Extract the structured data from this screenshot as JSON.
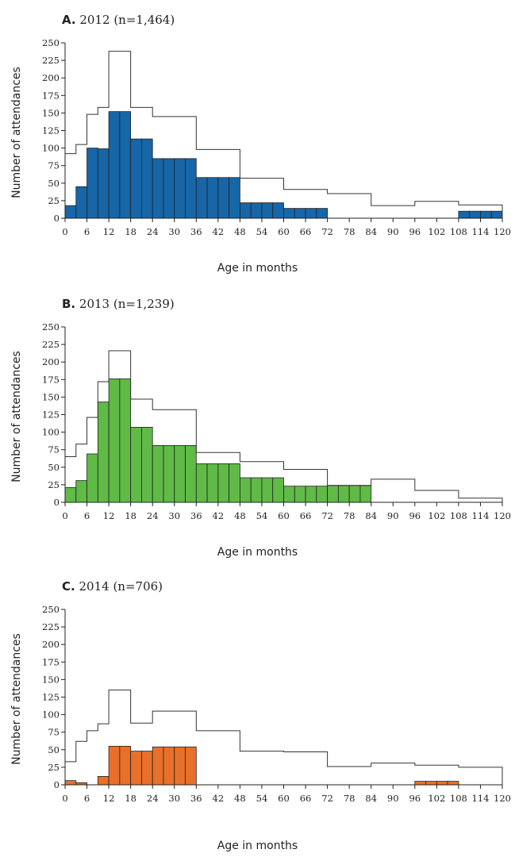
{
  "x_axis_label": "Age in months",
  "y_axis_label": "Number of attendances",
  "chart_data": [
    {
      "type": "bar",
      "title_letter": "A.",
      "title_text": "2012 (n=1,464)",
      "xlabel": "Age in months",
      "ylabel": "Number of attendances",
      "xlim": [
        0,
        120
      ],
      "ylim": [
        0,
        250
      ],
      "x_ticks": [
        0,
        6,
        12,
        18,
        24,
        30,
        36,
        42,
        48,
        54,
        60,
        66,
        72,
        78,
        84,
        90,
        96,
        102,
        108,
        114,
        120
      ],
      "y_ticks": [
        0,
        25,
        50,
        75,
        100,
        125,
        150,
        175,
        200,
        225,
        250
      ],
      "bar_color": "#1666a8",
      "bars": [
        {
          "x0": 0,
          "x1": 3,
          "value": 18
        },
        {
          "x0": 3,
          "x1": 6,
          "value": 45
        },
        {
          "x0": 6,
          "x1": 9,
          "value": 100
        },
        {
          "x0": 9,
          "x1": 12,
          "value": 99
        },
        {
          "x0": 12,
          "x1": 15,
          "value": 152
        },
        {
          "x0": 15,
          "x1": 18,
          "value": 152
        },
        {
          "x0": 18,
          "x1": 21,
          "value": 113
        },
        {
          "x0": 21,
          "x1": 24,
          "value": 113
        },
        {
          "x0": 24,
          "x1": 27,
          "value": 85
        },
        {
          "x0": 27,
          "x1": 30,
          "value": 85
        },
        {
          "x0": 30,
          "x1": 33,
          "value": 85
        },
        {
          "x0": 33,
          "x1": 36,
          "value": 85
        },
        {
          "x0": 36,
          "x1": 39,
          "value": 58
        },
        {
          "x0": 39,
          "x1": 42,
          "value": 58
        },
        {
          "x0": 42,
          "x1": 45,
          "value": 58
        },
        {
          "x0": 45,
          "x1": 48,
          "value": 58
        },
        {
          "x0": 48,
          "x1": 51,
          "value": 22
        },
        {
          "x0": 51,
          "x1": 54,
          "value": 22
        },
        {
          "x0": 54,
          "x1": 57,
          "value": 22
        },
        {
          "x0": 57,
          "x1": 60,
          "value": 22
        },
        {
          "x0": 60,
          "x1": 63,
          "value": 14
        },
        {
          "x0": 63,
          "x1": 66,
          "value": 14
        },
        {
          "x0": 66,
          "x1": 69,
          "value": 14
        },
        {
          "x0": 69,
          "x1": 72,
          "value": 14
        },
        {
          "x0": 108,
          "x1": 111,
          "value": 10
        },
        {
          "x0": 111,
          "x1": 114,
          "value": 10
        },
        {
          "x0": 114,
          "x1": 117,
          "value": 10
        },
        {
          "x0": 117,
          "x1": 120,
          "value": 10
        }
      ],
      "outline": [
        {
          "x0": 0,
          "x1": 3,
          "value": 92
        },
        {
          "x0": 3,
          "x1": 6,
          "value": 105
        },
        {
          "x0": 6,
          "x1": 9,
          "value": 148
        },
        {
          "x0": 9,
          "x1": 12,
          "value": 158
        },
        {
          "x0": 12,
          "x1": 18,
          "value": 238
        },
        {
          "x0": 18,
          "x1": 24,
          "value": 158
        },
        {
          "x0": 24,
          "x1": 36,
          "value": 145
        },
        {
          "x0": 36,
          "x1": 48,
          "value": 98
        },
        {
          "x0": 48,
          "x1": 60,
          "value": 57
        },
        {
          "x0": 60,
          "x1": 72,
          "value": 41
        },
        {
          "x0": 72,
          "x1": 84,
          "value": 35
        },
        {
          "x0": 84,
          "x1": 96,
          "value": 18
        },
        {
          "x0": 96,
          "x1": 108,
          "value": 24
        },
        {
          "x0": 108,
          "x1": 120,
          "value": 19
        }
      ]
    },
    {
      "type": "bar",
      "title_letter": "B.",
      "title_text": "2013 (n=1,239)",
      "xlabel": "Age in months",
      "ylabel": "Number of attendances",
      "xlim": [
        0,
        120
      ],
      "ylim": [
        0,
        250
      ],
      "x_ticks": [
        0,
        6,
        12,
        18,
        24,
        30,
        36,
        42,
        48,
        54,
        60,
        66,
        72,
        78,
        84,
        90,
        96,
        102,
        108,
        114,
        120
      ],
      "y_ticks": [
        0,
        25,
        50,
        75,
        100,
        125,
        150,
        175,
        200,
        225,
        250
      ],
      "bar_color": "#5fba46",
      "bars": [
        {
          "x0": 0,
          "x1": 3,
          "value": 21
        },
        {
          "x0": 3,
          "x1": 6,
          "value": 31
        },
        {
          "x0": 6,
          "x1": 9,
          "value": 69
        },
        {
          "x0": 9,
          "x1": 12,
          "value": 143
        },
        {
          "x0": 12,
          "x1": 15,
          "value": 176
        },
        {
          "x0": 15,
          "x1": 18,
          "value": 176
        },
        {
          "x0": 18,
          "x1": 21,
          "value": 107
        },
        {
          "x0": 21,
          "x1": 24,
          "value": 107
        },
        {
          "x0": 24,
          "x1": 27,
          "value": 81
        },
        {
          "x0": 27,
          "x1": 30,
          "value": 81
        },
        {
          "x0": 30,
          "x1": 33,
          "value": 81
        },
        {
          "x0": 33,
          "x1": 36,
          "value": 81
        },
        {
          "x0": 36,
          "x1": 39,
          "value": 55
        },
        {
          "x0": 39,
          "x1": 42,
          "value": 55
        },
        {
          "x0": 42,
          "x1": 45,
          "value": 55
        },
        {
          "x0": 45,
          "x1": 48,
          "value": 55
        },
        {
          "x0": 48,
          "x1": 51,
          "value": 35
        },
        {
          "x0": 51,
          "x1": 54,
          "value": 35
        },
        {
          "x0": 54,
          "x1": 57,
          "value": 35
        },
        {
          "x0": 57,
          "x1": 60,
          "value": 35
        },
        {
          "x0": 60,
          "x1": 63,
          "value": 23
        },
        {
          "x0": 63,
          "x1": 66,
          "value": 23
        },
        {
          "x0": 66,
          "x1": 69,
          "value": 23
        },
        {
          "x0": 69,
          "x1": 72,
          "value": 23
        },
        {
          "x0": 72,
          "x1": 75,
          "value": 24
        },
        {
          "x0": 75,
          "x1": 78,
          "value": 24
        },
        {
          "x0": 78,
          "x1": 81,
          "value": 24
        },
        {
          "x0": 81,
          "x1": 84,
          "value": 24
        }
      ],
      "outline": [
        {
          "x0": 0,
          "x1": 3,
          "value": 65
        },
        {
          "x0": 3,
          "x1": 6,
          "value": 83
        },
        {
          "x0": 6,
          "x1": 9,
          "value": 121
        },
        {
          "x0": 9,
          "x1": 12,
          "value": 172
        },
        {
          "x0": 12,
          "x1": 18,
          "value": 216
        },
        {
          "x0": 18,
          "x1": 24,
          "value": 147
        },
        {
          "x0": 24,
          "x1": 36,
          "value": 132
        },
        {
          "x0": 36,
          "x1": 48,
          "value": 71
        },
        {
          "x0": 48,
          "x1": 60,
          "value": 58
        },
        {
          "x0": 60,
          "x1": 72,
          "value": 47
        },
        {
          "x0": 72,
          "x1": 84,
          "value": 24
        },
        {
          "x0": 84,
          "x1": 96,
          "value": 33
        },
        {
          "x0": 96,
          "x1": 108,
          "value": 17
        },
        {
          "x0": 108,
          "x1": 120,
          "value": 6
        }
      ]
    },
    {
      "type": "bar",
      "title_letter": "C.",
      "title_text": "2014 (n=706)",
      "xlabel": "Age in months",
      "ylabel": "Number of attendances",
      "xlim": [
        0,
        120
      ],
      "ylim": [
        0,
        250
      ],
      "x_ticks": [
        0,
        6,
        12,
        18,
        24,
        30,
        36,
        42,
        48,
        54,
        60,
        66,
        72,
        78,
        84,
        90,
        96,
        102,
        108,
        114,
        120
      ],
      "y_ticks": [
        0,
        25,
        50,
        75,
        100,
        125,
        150,
        175,
        200,
        225,
        250
      ],
      "bar_color": "#e8702a",
      "bars": [
        {
          "x0": 0,
          "x1": 3,
          "value": 6
        },
        {
          "x0": 3,
          "x1": 6,
          "value": 3
        },
        {
          "x0": 9,
          "x1": 12,
          "value": 12
        },
        {
          "x0": 12,
          "x1": 15,
          "value": 55
        },
        {
          "x0": 15,
          "x1": 18,
          "value": 55
        },
        {
          "x0": 18,
          "x1": 21,
          "value": 48
        },
        {
          "x0": 21,
          "x1": 24,
          "value": 48
        },
        {
          "x0": 24,
          "x1": 27,
          "value": 54
        },
        {
          "x0": 27,
          "x1": 30,
          "value": 54
        },
        {
          "x0": 30,
          "x1": 33,
          "value": 54
        },
        {
          "x0": 33,
          "x1": 36,
          "value": 54
        },
        {
          "x0": 96,
          "x1": 99,
          "value": 5
        },
        {
          "x0": 99,
          "x1": 102,
          "value": 5
        },
        {
          "x0": 102,
          "x1": 105,
          "value": 5
        },
        {
          "x0": 105,
          "x1": 108,
          "value": 5
        }
      ],
      "outline": [
        {
          "x0": 0,
          "x1": 3,
          "value": 33
        },
        {
          "x0": 3,
          "x1": 6,
          "value": 62
        },
        {
          "x0": 6,
          "x1": 9,
          "value": 77
        },
        {
          "x0": 9,
          "x1": 12,
          "value": 87
        },
        {
          "x0": 12,
          "x1": 18,
          "value": 135
        },
        {
          "x0": 18,
          "x1": 24,
          "value": 88
        },
        {
          "x0": 24,
          "x1": 36,
          "value": 105
        },
        {
          "x0": 36,
          "x1": 48,
          "value": 77
        },
        {
          "x0": 48,
          "x1": 60,
          "value": 48
        },
        {
          "x0": 60,
          "x1": 72,
          "value": 47
        },
        {
          "x0": 72,
          "x1": 84,
          "value": 26
        },
        {
          "x0": 84,
          "x1": 96,
          "value": 31
        },
        {
          "x0": 96,
          "x1": 108,
          "value": 28
        },
        {
          "x0": 108,
          "x1": 120,
          "value": 25
        }
      ]
    }
  ]
}
